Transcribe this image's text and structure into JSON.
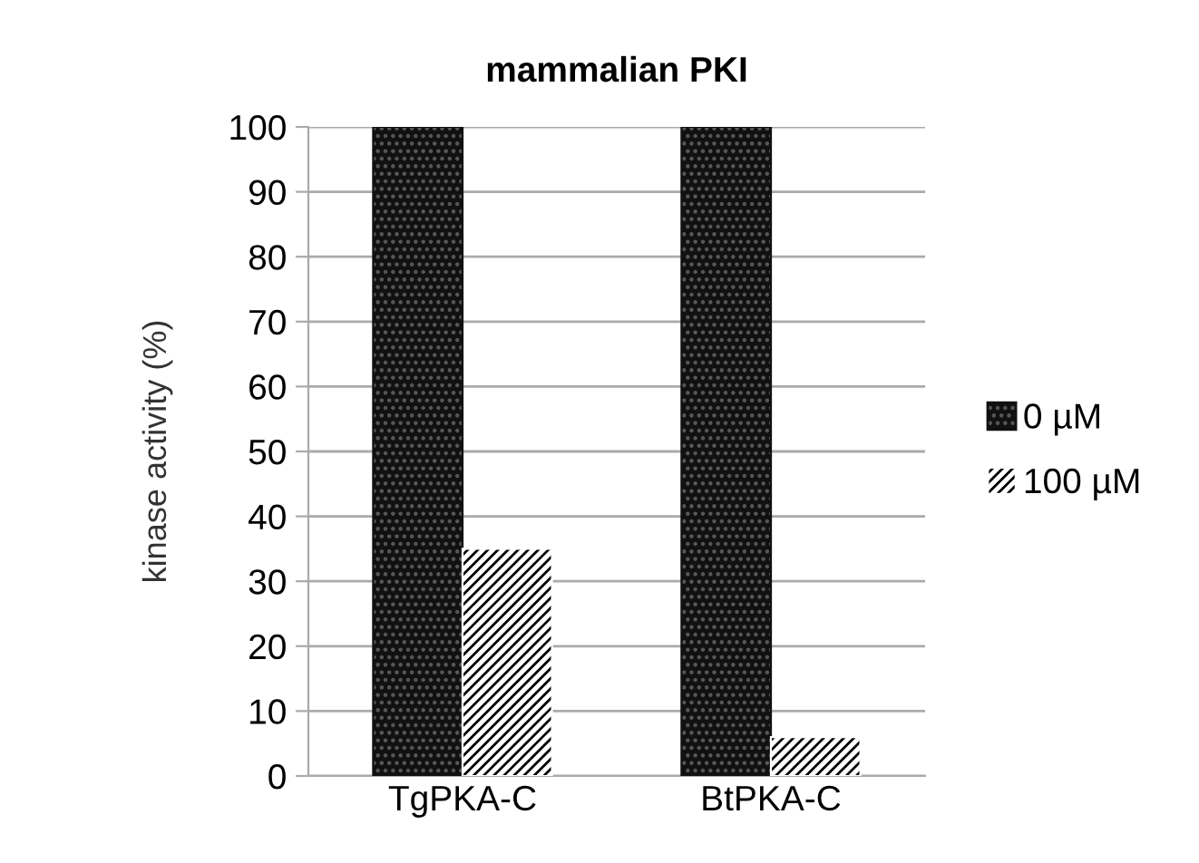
{
  "chart_data": {
    "type": "bar",
    "title": "mammalian PKI",
    "ylabel": "kinase activity (%)",
    "categories": [
      "TgPKA-C",
      "BtPKA-C"
    ],
    "series": [
      {
        "name": "0 µM",
        "color": "#111111",
        "values": [
          100,
          100
        ]
      },
      {
        "name": "100 µM",
        "color": "#ffffff",
        "values": [
          35,
          6
        ]
      }
    ],
    "ylim": [
      0,
      100
    ],
    "yticks": [
      0,
      10,
      20,
      30,
      40,
      50,
      60,
      70,
      80,
      90,
      100
    ],
    "grid": "y",
    "legend": "right"
  }
}
